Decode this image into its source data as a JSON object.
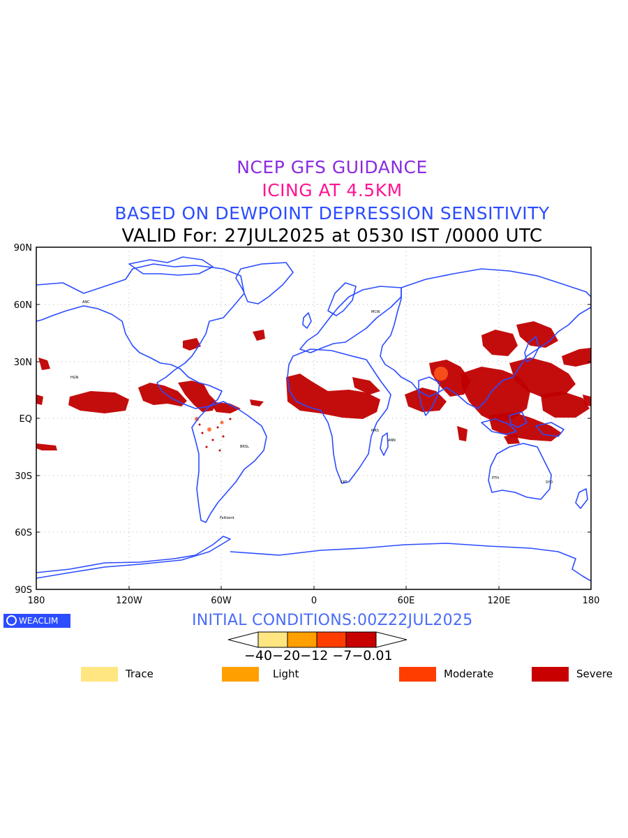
{
  "titles": {
    "line1": "NCEP GFS GUIDANCE",
    "line2": "ICING AT 4.5KM",
    "line3": "BASED ON DEWPOINT DEPRESSION SENSITIVITY",
    "line4": "VALID For: 27JUL2025 at 0530 IST /0000 UTC"
  },
  "axes": {
    "lat_labels": [
      "90N",
      "60N",
      "30N",
      "EQ",
      "30S",
      "60S",
      "90S"
    ],
    "lon_labels": [
      "180",
      "120W",
      "60W",
      "0",
      "60E",
      "120E",
      "180"
    ]
  },
  "logo_text": "WEACLIM",
  "initial_conditions": "INITIAL CONDITIONS:00Z22JUL2025",
  "colorbar": {
    "ticks_text": "−40−20−12 −7−0.01",
    "colors": [
      "#ffe680",
      "#ff9f00",
      "#ff3d00",
      "#c80000"
    ]
  },
  "legend": [
    {
      "label": "Trace",
      "color": "#ffe680"
    },
    {
      "label": "Light",
      "color": "#ff9f00"
    },
    {
      "label": "Moderate",
      "color": "#ff3d00"
    },
    {
      "label": "Severe",
      "color": "#c80000"
    }
  ],
  "station_labels": [
    "ANC",
    "MCW",
    "HGN",
    "BRSL",
    "Falkland",
    "CPT",
    "PTH",
    "SYD",
    "MRS",
    "ANN"
  ]
}
